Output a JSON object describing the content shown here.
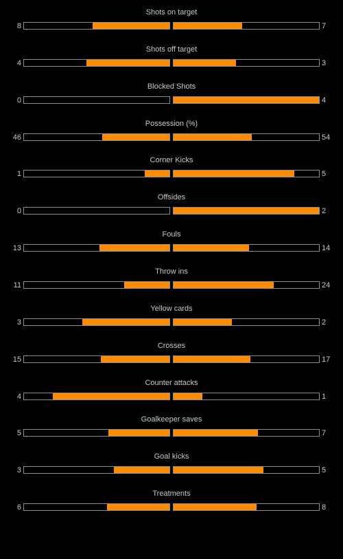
{
  "colors": {
    "background": "#000000",
    "bar_fill": "#ff8c00",
    "bar_border": "#8c8c8c",
    "text": "#c8c8c8"
  },
  "stats": [
    {
      "label": "Shots on target",
      "home": 8,
      "away": 7,
      "home_fill": 0.53,
      "away_fill": 0.47
    },
    {
      "label": "Shots off target",
      "home": 4,
      "away": 3,
      "home_fill": 0.57,
      "away_fill": 0.43
    },
    {
      "label": "Blocked Shots",
      "home": 0,
      "away": 4,
      "home_fill": 0.0,
      "away_fill": 1.0
    },
    {
      "label": "Possession (%)",
      "home": 46,
      "away": 54,
      "home_fill": 0.46,
      "away_fill": 0.54
    },
    {
      "label": "Corner Kicks",
      "home": 1,
      "away": 5,
      "home_fill": 0.17,
      "away_fill": 0.83
    },
    {
      "label": "Offsides",
      "home": 0,
      "away": 2,
      "home_fill": 0.0,
      "away_fill": 1.0
    },
    {
      "label": "Fouls",
      "home": 13,
      "away": 14,
      "home_fill": 0.48,
      "away_fill": 0.52
    },
    {
      "label": "Throw ins",
      "home": 11,
      "away": 24,
      "home_fill": 0.31,
      "away_fill": 0.69
    },
    {
      "label": "Yellow cards",
      "home": 3,
      "away": 2,
      "home_fill": 0.6,
      "away_fill": 0.4
    },
    {
      "label": "Crosses",
      "home": 15,
      "away": 17,
      "home_fill": 0.47,
      "away_fill": 0.53
    },
    {
      "label": "Counter attacks",
      "home": 4,
      "away": 1,
      "home_fill": 0.8,
      "away_fill": 0.2
    },
    {
      "label": "Goalkeeper saves",
      "home": 5,
      "away": 7,
      "home_fill": 0.42,
      "away_fill": 0.58
    },
    {
      "label": "Goal kicks",
      "home": 3,
      "away": 5,
      "home_fill": 0.38,
      "away_fill": 0.62
    },
    {
      "label": "Treatments",
      "home": 6,
      "away": 8,
      "home_fill": 0.43,
      "away_fill": 0.57
    }
  ]
}
